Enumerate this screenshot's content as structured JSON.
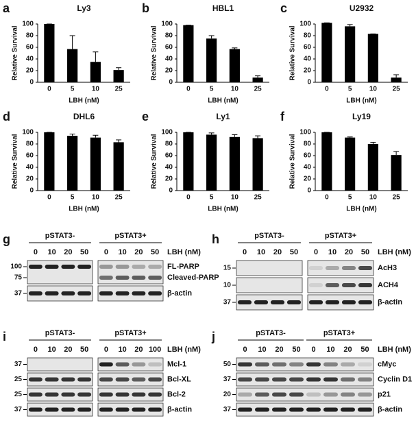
{
  "chart_data": [
    {
      "type": "bar",
      "label": "a",
      "title": "Ly3",
      "x_label": "LBH (nM)",
      "y_label": "Relative Survival",
      "categories": [
        "0",
        "5",
        "10",
        "25"
      ],
      "values": [
        100,
        57,
        35,
        21
      ],
      "errors": [
        0,
        23,
        17,
        4
      ],
      "color": "#000000",
      "ylim": [
        0,
        100
      ],
      "yticks": [
        0,
        20,
        40,
        60,
        80,
        100
      ]
    },
    {
      "type": "bar",
      "label": "b",
      "title": "HBL1",
      "x_label": "LBH (nM)",
      "y_label": "Relative Survival",
      "categories": [
        "0",
        "5",
        "10",
        "25"
      ],
      "values": [
        98,
        75,
        57,
        8
      ],
      "errors": [
        0,
        5,
        2,
        3
      ],
      "color": "#000000",
      "ylim": [
        0,
        100
      ],
      "yticks": [
        0,
        20,
        40,
        60,
        80,
        100
      ]
    },
    {
      "type": "bar",
      "label": "c",
      "title": "U2932",
      "x_label": "LBH (nM)",
      "y_label": "Relative Survival",
      "categories": [
        "0",
        "5",
        "10",
        "25"
      ],
      "values": [
        102,
        96,
        83,
        8
      ],
      "errors": [
        0,
        3,
        0,
        5
      ],
      "color": "#000000",
      "ylim": [
        0,
        100
      ],
      "yticks": [
        0,
        20,
        40,
        60,
        80,
        100
      ]
    },
    {
      "type": "bar",
      "label": "d",
      "title": "DHL6",
      "x_label": "LBH (nM)",
      "y_label": "Relative Survival",
      "categories": [
        "0",
        "5",
        "10",
        "25"
      ],
      "values": [
        100,
        94,
        91,
        83
      ],
      "errors": [
        0,
        3,
        4,
        4
      ],
      "color": "#000000",
      "ylim": [
        0,
        100
      ],
      "yticks": [
        0,
        20,
        40,
        60,
        80,
        100
      ]
    },
    {
      "type": "bar",
      "label": "e",
      "title": "Ly1",
      "x_label": "LBH (nM)",
      "y_label": "Relative Survival",
      "categories": [
        "0",
        "5",
        "10",
        "25"
      ],
      "values": [
        100,
        96,
        92,
        90
      ],
      "errors": [
        0,
        3,
        4,
        4
      ],
      "color": "#000000",
      "ylim": [
        0,
        100
      ],
      "yticks": [
        0,
        20,
        40,
        60,
        80,
        100
      ]
    },
    {
      "type": "bar",
      "label": "f",
      "title": "Ly19",
      "x_label": "LBH (nM)",
      "y_label": "Relative Survival",
      "categories": [
        "0",
        "5",
        "10",
        "25"
      ],
      "values": [
        100,
        91,
        80,
        61
      ],
      "errors": [
        0,
        1,
        3,
        6
      ],
      "color": "#000000",
      "ylim": [
        0,
        100
      ],
      "yticks": [
        0,
        20,
        40,
        60,
        80,
        100
      ]
    }
  ],
  "blots": [
    {
      "label": "g",
      "groups": [
        "pSTAT3-",
        "pSTAT3+"
      ],
      "unit": "LBH (nM)",
      "lanes": [
        "0",
        "10",
        "20",
        "50",
        "0",
        "10",
        "20",
        "50"
      ],
      "strips": [
        {
          "markers": [
            "100",
            "75"
          ],
          "names": [
            "FL-PARP",
            "Cleaved-PARP"
          ]
        },
        {
          "markers": [
            "37"
          ],
          "names": [
            "β-actin"
          ]
        }
      ]
    },
    {
      "label": "h",
      "groups": [
        "pSTAT3-",
        "pSTAT3+"
      ],
      "unit": "LBH (nM)",
      "lanes": [
        "0",
        "10",
        "20",
        "50",
        "0",
        "10",
        "20",
        "50"
      ],
      "strips": [
        {
          "markers": [
            "15"
          ],
          "names": [
            "AcH3"
          ]
        },
        {
          "markers": [
            "10"
          ],
          "names": [
            "ACH4"
          ]
        },
        {
          "markers": [
            "37"
          ],
          "names": [
            "β-actin"
          ]
        }
      ]
    },
    {
      "label": "i",
      "groups": [
        "pSTAT3-",
        "pSTAT3+"
      ],
      "unit": "LBH (nM)",
      "lanes": [
        "0",
        "10",
        "20",
        "50",
        "0",
        "10",
        "20",
        "100"
      ],
      "strips": [
        {
          "markers": [
            "37"
          ],
          "names": [
            "Mcl-1"
          ]
        },
        {
          "markers": [
            "25"
          ],
          "names": [
            "Bcl-XL"
          ]
        },
        {
          "markers": [
            "25"
          ],
          "names": [
            "Bcl-2"
          ]
        },
        {
          "markers": [
            "37"
          ],
          "names": [
            "β-actin"
          ]
        }
      ]
    },
    {
      "label": "j",
      "groups": [
        "pSTAT3-",
        "pSTAT3+"
      ],
      "unit": "LBH (nM)",
      "lanes": [
        "0",
        "10",
        "20",
        "50",
        "0",
        "10",
        "20",
        "50"
      ],
      "strips": [
        {
          "markers": [
            "50"
          ],
          "names": [
            "cMyc"
          ]
        },
        {
          "markers": [
            "37"
          ],
          "names": [
            "Cyclin D1"
          ]
        },
        {
          "markers": [
            "20"
          ],
          "names": [
            "p21"
          ]
        },
        {
          "markers": [
            "37"
          ],
          "names": [
            "β-actin"
          ]
        }
      ]
    }
  ]
}
